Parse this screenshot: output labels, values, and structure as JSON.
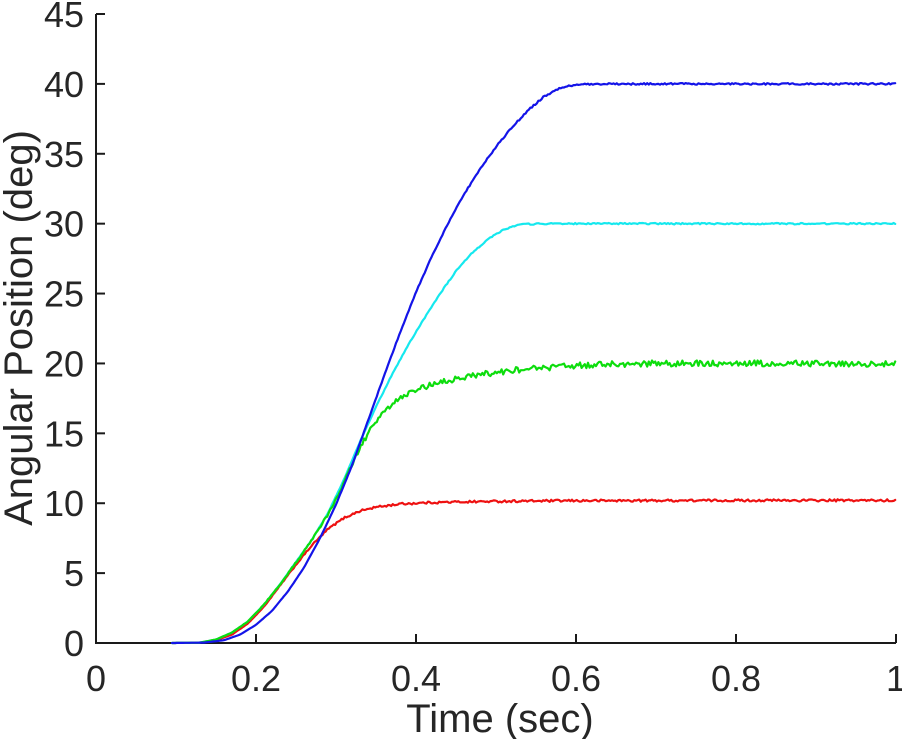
{
  "figure": {
    "background": "#ffffff",
    "axis_color": "#1a1a1a"
  },
  "chart_data": {
    "type": "line",
    "title": "",
    "xlabel": "Time (sec)",
    "ylabel": "Angular Position (deg)",
    "xlim": [
      0,
      1
    ],
    "ylim": [
      0,
      45
    ],
    "grid": false,
    "legend": null,
    "box": "left-bottom-only",
    "x_ticks": [
      {
        "v": 0,
        "label": "0"
      },
      {
        "v": 0.2,
        "label": "0.2"
      },
      {
        "v": 0.4,
        "label": "0.4"
      },
      {
        "v": 0.6,
        "label": "0.6"
      },
      {
        "v": 0.8,
        "label": "0.8"
      },
      {
        "v": 1,
        "label": "1"
      }
    ],
    "y_ticks": [
      {
        "v": 0,
        "label": "0"
      },
      {
        "v": 5,
        "label": "5"
      },
      {
        "v": 10,
        "label": "10"
      },
      {
        "v": 15,
        "label": "15"
      },
      {
        "v": 20,
        "label": "20"
      },
      {
        "v": 25,
        "label": "25"
      },
      {
        "v": 30,
        "label": "30"
      },
      {
        "v": 35,
        "label": "35"
      },
      {
        "v": 40,
        "label": "40"
      },
      {
        "v": 45,
        "label": "45"
      }
    ],
    "series": [
      {
        "name": "red-10deg-response",
        "color": "#ee1111",
        "final": 10.2,
        "noise": 0.08,
        "points": [
          [
            0.095,
            0
          ],
          [
            0.13,
            0.03
          ],
          [
            0.15,
            0.2
          ],
          [
            0.17,
            0.6
          ],
          [
            0.19,
            1.4
          ],
          [
            0.21,
            2.6
          ],
          [
            0.23,
            4.1
          ],
          [
            0.25,
            5.6
          ],
          [
            0.27,
            7.0
          ],
          [
            0.29,
            8.15
          ],
          [
            0.31,
            8.95
          ],
          [
            0.33,
            9.45
          ],
          [
            0.35,
            9.72
          ],
          [
            0.38,
            9.95
          ],
          [
            0.42,
            10.05
          ],
          [
            0.46,
            10.1
          ],
          [
            0.52,
            10.15
          ],
          [
            0.6,
            10.18
          ],
          [
            0.8,
            10.2
          ],
          [
            1,
            10.2
          ]
        ]
      },
      {
        "name": "cyan-30deg-response",
        "color": "#15e8ee",
        "final": 30,
        "noise": 0.05,
        "points": [
          [
            0.095,
            0
          ],
          [
            0.13,
            0.03
          ],
          [
            0.15,
            0.25
          ],
          [
            0.17,
            0.75
          ],
          [
            0.19,
            1.55
          ],
          [
            0.21,
            2.75
          ],
          [
            0.23,
            4.2
          ],
          [
            0.25,
            5.8
          ],
          [
            0.27,
            7.4
          ],
          [
            0.29,
            9.3
          ],
          [
            0.31,
            11.7
          ],
          [
            0.33,
            14.4
          ],
          [
            0.35,
            16.9
          ],
          [
            0.37,
            19.2
          ],
          [
            0.39,
            21.3
          ],
          [
            0.41,
            23.2
          ],
          [
            0.43,
            25.0
          ],
          [
            0.45,
            26.6
          ],
          [
            0.47,
            27.9
          ],
          [
            0.49,
            28.9
          ],
          [
            0.51,
            29.6
          ],
          [
            0.53,
            29.95
          ],
          [
            0.56,
            30
          ],
          [
            0.75,
            30
          ],
          [
            1,
            30
          ]
        ]
      },
      {
        "name": "green-20deg-response",
        "color": "#0ddd0d",
        "final": 20,
        "noise": 0.22,
        "points": [
          [
            0.095,
            0
          ],
          [
            0.13,
            0.03
          ],
          [
            0.15,
            0.25
          ],
          [
            0.17,
            0.75
          ],
          [
            0.19,
            1.55
          ],
          [
            0.21,
            2.75
          ],
          [
            0.23,
            4.2
          ],
          [
            0.25,
            5.75
          ],
          [
            0.27,
            7.35
          ],
          [
            0.29,
            9.2
          ],
          [
            0.31,
            11.5
          ],
          [
            0.33,
            14.0
          ],
          [
            0.35,
            15.9
          ],
          [
            0.37,
            17.1
          ],
          [
            0.39,
            17.85
          ],
          [
            0.42,
            18.5
          ],
          [
            0.45,
            18.9
          ],
          [
            0.48,
            19.2
          ],
          [
            0.52,
            19.5
          ],
          [
            0.56,
            19.7
          ],
          [
            0.6,
            19.85
          ],
          [
            0.65,
            19.95
          ],
          [
            0.7,
            20
          ],
          [
            0.85,
            20
          ],
          [
            1,
            19.95
          ]
        ]
      },
      {
        "name": "blue-40deg-response",
        "color": "#1414e8",
        "final": 40,
        "noise": 0.06,
        "points": [
          [
            0.095,
            0
          ],
          [
            0.135,
            0.03
          ],
          [
            0.16,
            0.2
          ],
          [
            0.18,
            0.6
          ],
          [
            0.2,
            1.3
          ],
          [
            0.22,
            2.3
          ],
          [
            0.24,
            3.7
          ],
          [
            0.26,
            5.4
          ],
          [
            0.28,
            7.5
          ],
          [
            0.3,
            9.9
          ],
          [
            0.32,
            12.7
          ],
          [
            0.34,
            15.9
          ],
          [
            0.36,
            19.1
          ],
          [
            0.38,
            22.2
          ],
          [
            0.4,
            25.1
          ],
          [
            0.42,
            27.7
          ],
          [
            0.44,
            30.0
          ],
          [
            0.46,
            32.1
          ],
          [
            0.48,
            33.9
          ],
          [
            0.5,
            35.5
          ],
          [
            0.52,
            36.9
          ],
          [
            0.54,
            38.1
          ],
          [
            0.56,
            39.1
          ],
          [
            0.58,
            39.7
          ],
          [
            0.6,
            39.95
          ],
          [
            0.63,
            40
          ],
          [
            0.8,
            40
          ],
          [
            1,
            40
          ]
        ]
      }
    ]
  }
}
